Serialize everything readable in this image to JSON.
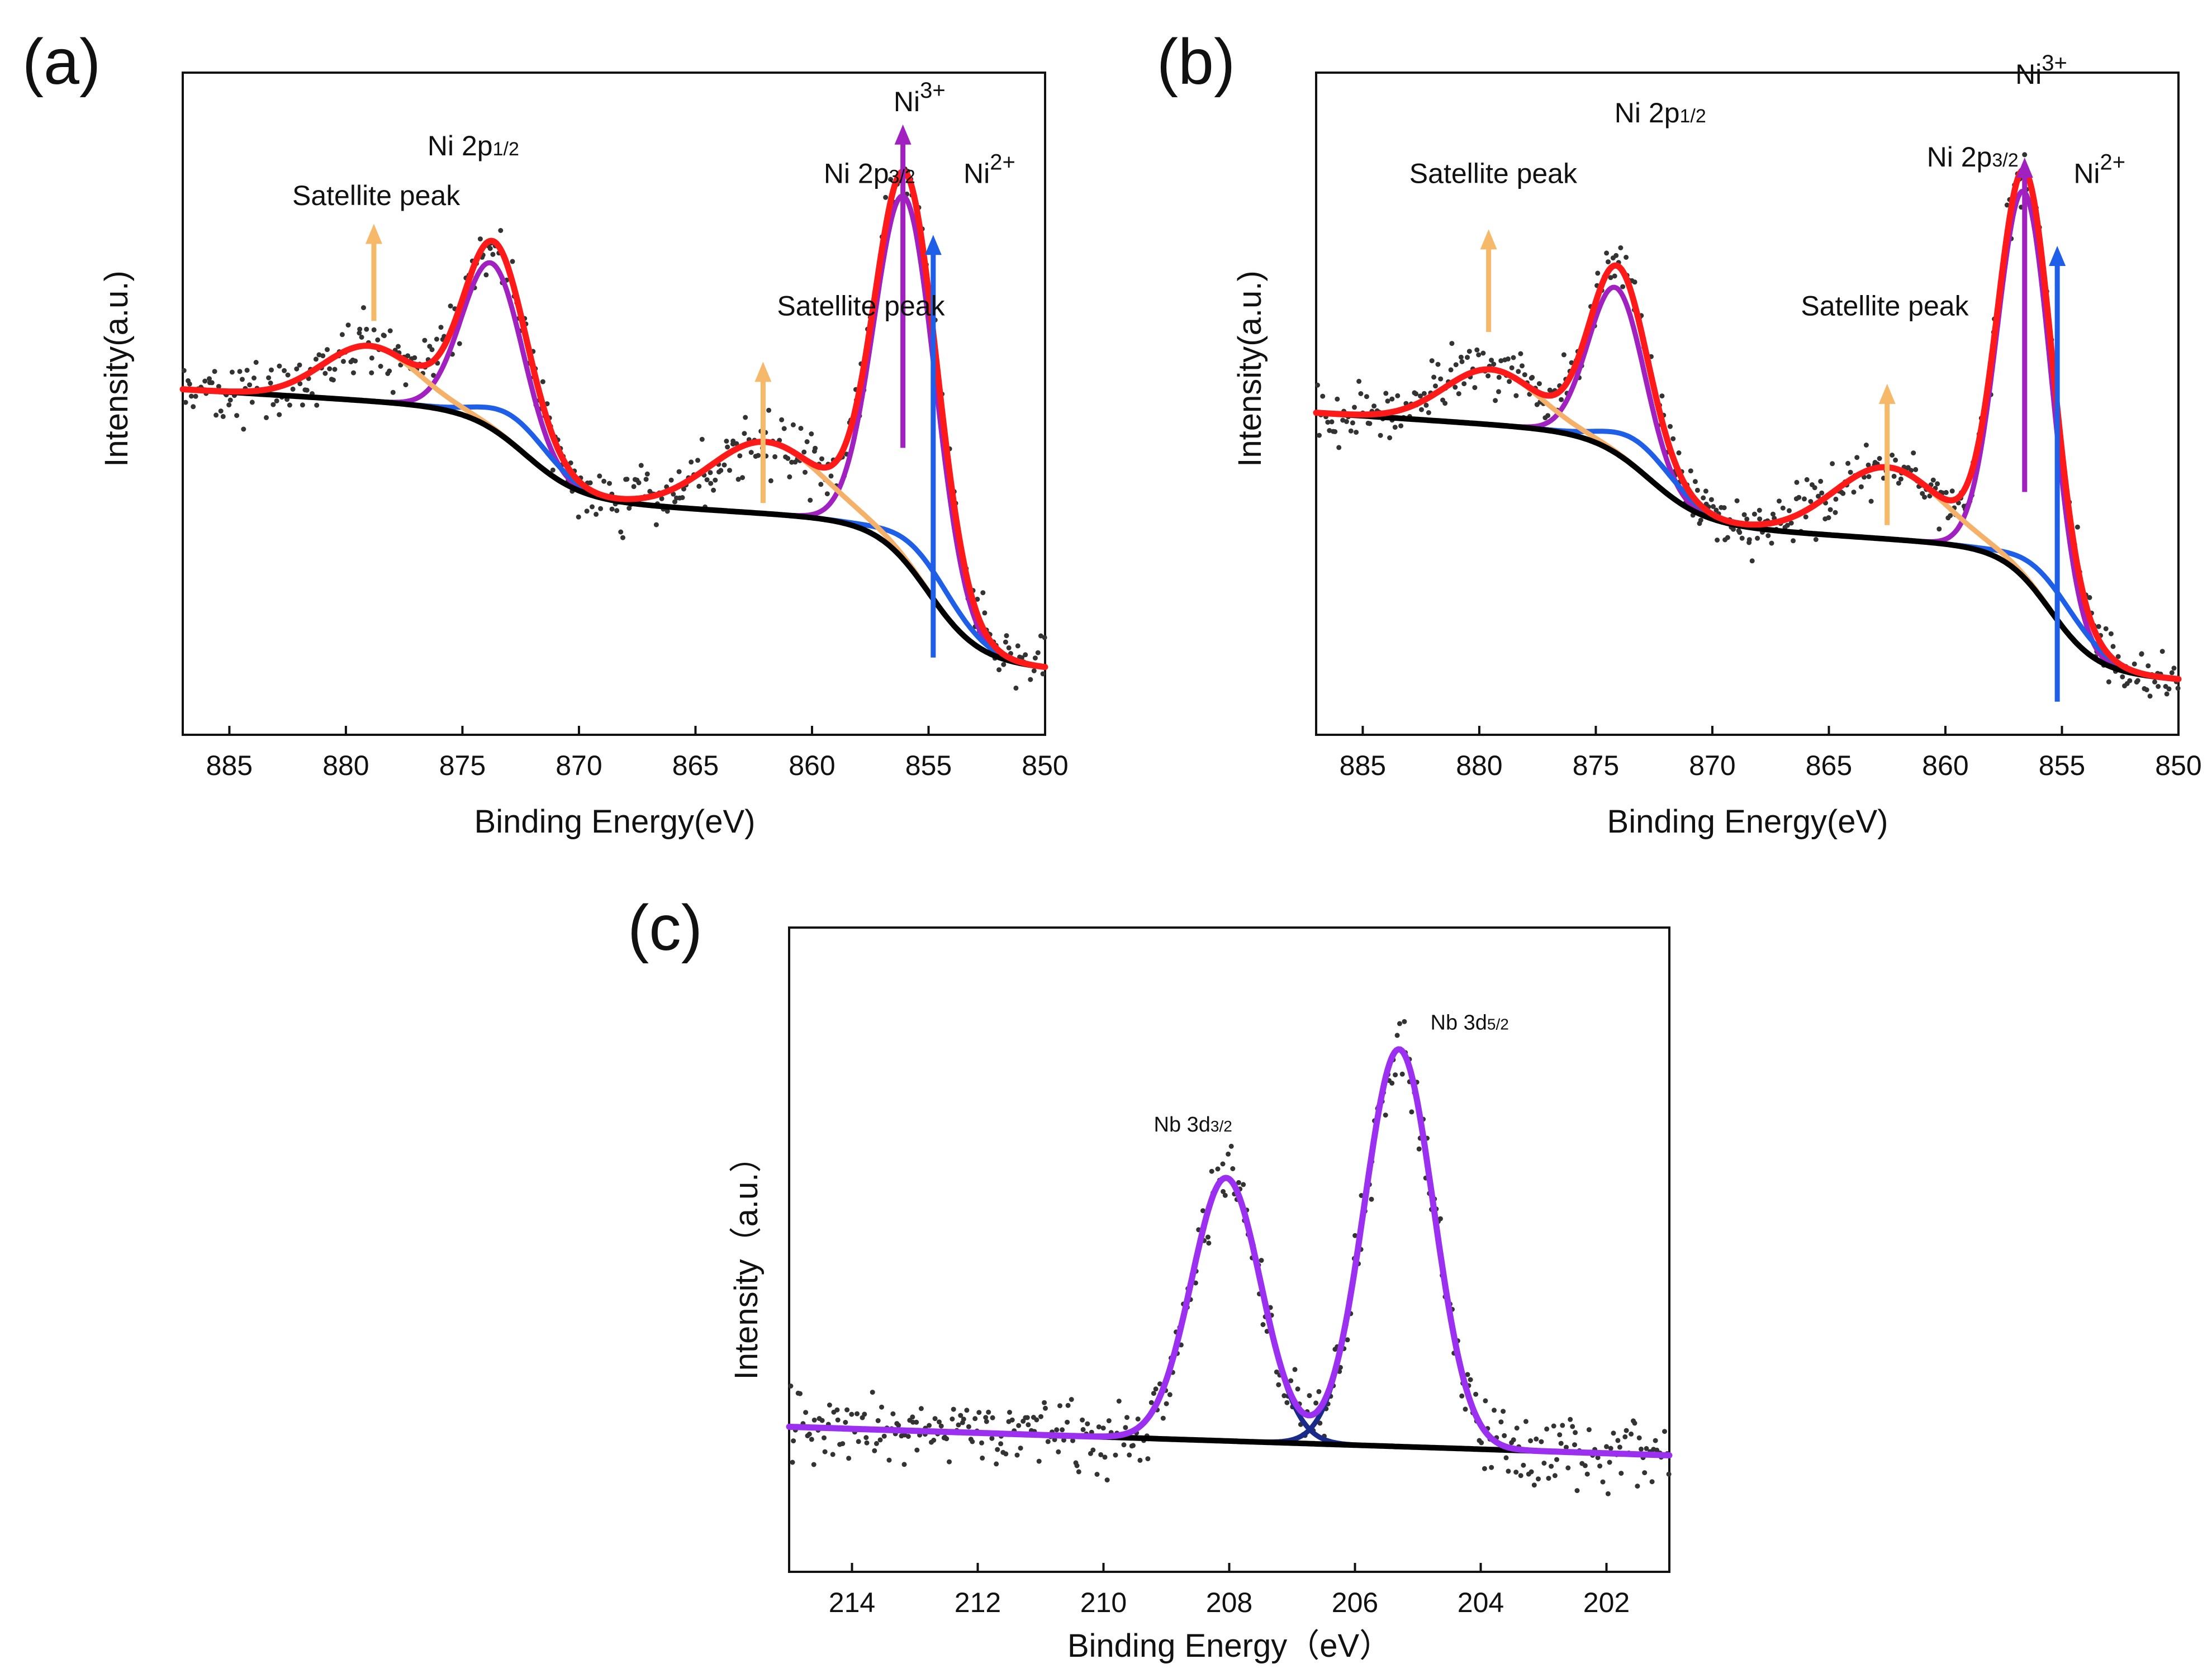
{
  "colors": {
    "raw": "#333333",
    "envelope_ni": "#ff1a1a",
    "ni3_component": "#a020c0",
    "ni2_component": "#1f5fe8",
    "satellite_component": "#f5b06a",
    "background": "#000000",
    "envelope_nb": "#9b30f0",
    "nb_component": "#1a2a8a",
    "satellite_arrow": "#f6b869",
    "ni3_arrow": "#a020c0",
    "ni2_arrow": "#1f5fe8"
  },
  "chart_data": [
    {
      "panel": "(a)",
      "type": "line",
      "xlabel": "Binding Energy(eV)",
      "ylabel": "Intensity(a.u.)",
      "xlim": [
        887,
        850
      ],
      "ylim": [
        0,
        1.2
      ],
      "xticks": [
        885,
        880,
        875,
        870,
        865,
        860,
        855,
        850
      ],
      "xtick_labels": [
        "885",
        "880",
        "875",
        "870",
        "865",
        "860",
        "855",
        "850"
      ],
      "peaks": [
        {
          "name": "Ni3+ 2p3/2",
          "center": 856.0,
          "height": 0.66,
          "width": 1.3,
          "series": "ni3"
        },
        {
          "name": "Ni2+ 2p3/2",
          "center": 855.0,
          "height": 0.05,
          "width": 1.5,
          "series": "ni2"
        },
        {
          "name": "Satellite 2p3/2",
          "center": 862.0,
          "height": 0.13,
          "width": 2.4,
          "series": "sat"
        },
        {
          "name": "Ni3+ 2p1/2",
          "center": 873.7,
          "height": 0.3,
          "width": 1.3,
          "series": "ni3"
        },
        {
          "name": "Ni2+ 2p1/2",
          "center": 872.6,
          "height": 0.05,
          "width": 1.5,
          "series": "ni2"
        },
        {
          "name": "Satellite 2p1/2",
          "center": 879.0,
          "height": 0.1,
          "width": 2.0,
          "series": "sat"
        }
      ],
      "background_steps": [
        {
          "center": 855.0,
          "height": 0.25,
          "width": 1.1
        },
        {
          "center": 872.3,
          "height": 0.16,
          "width": 1.2
        }
      ],
      "background_base": 0.12,
      "background_slope": 0.0026,
      "background_ref": 850,
      "noise": 0.035,
      "seed": 7,
      "annotations": [
        {
          "text": "Satellite peak",
          "x": 882.3,
          "y": 0.96
        },
        {
          "text": "Ni 2p",
          "sub": "1/2",
          "x": 876.5,
          "y": 1.05
        },
        {
          "text": "Satellite peak",
          "x": 861.5,
          "y": 0.76
        },
        {
          "text": "Ni 2p",
          "sub": "3/2",
          "x": 859.5,
          "y": 1.0
        },
        {
          "text": "Ni",
          "sup": "3+",
          "x": 856.5,
          "y": 1.13
        },
        {
          "text": "Ni",
          "sup": "2+",
          "x": 853.5,
          "y": 1.0
        }
      ],
      "arrows": [
        {
          "series": "sat",
          "x": 878.8,
          "from": 0.75,
          "to": 0.92
        },
        {
          "series": "sat",
          "x": 862.1,
          "from": 0.42,
          "to": 0.67
        },
        {
          "series": "ni3",
          "x": 856.1,
          "from": 0.52,
          "to": 1.1
        },
        {
          "series": "ni2",
          "x": 854.8,
          "from": 0.14,
          "to": 0.9
        }
      ]
    },
    {
      "panel": "(b)",
      "type": "line",
      "xlabel": "Binding Energy(eV)",
      "ylabel": "Intensity(a.u.)",
      "xlim": [
        887,
        850
      ],
      "ylim": [
        0,
        1.2
      ],
      "xticks": [
        885,
        880,
        875,
        870,
        865,
        860,
        855,
        850
      ],
      "xtick_labels": [
        "885",
        "880",
        "875",
        "870",
        "865",
        "860",
        "855",
        "850"
      ],
      "peaks": [
        {
          "name": "Ni3+ 2p3/2",
          "center": 856.6,
          "height": 0.7,
          "width": 1.15,
          "series": "ni3"
        },
        {
          "name": "Ni2+ 2p3/2",
          "center": 855.3,
          "height": 0.05,
          "width": 1.5,
          "series": "ni2"
        },
        {
          "name": "Satellite 2p3/2",
          "center": 862.5,
          "height": 0.13,
          "width": 2.3,
          "series": "sat"
        },
        {
          "name": "Ni3+ 2p1/2",
          "center": 874.1,
          "height": 0.3,
          "width": 1.2,
          "series": "ni3"
        },
        {
          "name": "Ni2+ 2p1/2",
          "center": 873.0,
          "height": 0.05,
          "width": 1.5,
          "series": "ni2"
        },
        {
          "name": "Satellite 2p1/2",
          "center": 879.5,
          "height": 0.1,
          "width": 2.0,
          "series": "sat"
        }
      ],
      "background_steps": [
        {
          "center": 855.5,
          "height": 0.22,
          "width": 1.0
        },
        {
          "center": 872.7,
          "height": 0.16,
          "width": 1.2
        }
      ],
      "background_base": 0.1,
      "background_slope": 0.0028,
      "background_ref": 850,
      "noise": 0.035,
      "seed": 19,
      "annotations": [
        {
          "text": "Satellite peak",
          "x": 883.0,
          "y": 1.0
        },
        {
          "text": "Ni 2p",
          "sub": "1/2",
          "x": 874.2,
          "y": 1.11
        },
        {
          "text": "Satellite peak",
          "x": 866.2,
          "y": 0.76
        },
        {
          "text": "Ni 2p",
          "sub": "3/2",
          "x": 860.8,
          "y": 1.03
        },
        {
          "text": "Ni",
          "sup": "3+",
          "x": 857.0,
          "y": 1.18
        },
        {
          "text": "Ni",
          "sup": "2+",
          "x": 854.5,
          "y": 1.0
        }
      ],
      "arrows": [
        {
          "series": "sat",
          "x": 879.6,
          "from": 0.73,
          "to": 0.91
        },
        {
          "series": "sat",
          "x": 862.5,
          "from": 0.38,
          "to": 0.63
        },
        {
          "series": "ni3",
          "x": 856.6,
          "from": 0.44,
          "to": 1.04
        },
        {
          "series": "ni2",
          "x": 855.2,
          "from": 0.06,
          "to": 0.88
        }
      ]
    },
    {
      "panel": "(c)",
      "type": "line",
      "xlabel": "Binding Energy（eV）",
      "ylabel": "Intensity（a.u.）",
      "xlim": [
        215,
        201
      ],
      "ylim": [
        0,
        1.2
      ],
      "xticks": [
        214,
        212,
        210,
        208,
        206,
        204,
        202
      ],
      "xtick_labels": [
        "214",
        "212",
        "210",
        "208",
        "206",
        "204",
        "202"
      ],
      "peaks": [
        {
          "name": "Nb 3d3/2",
          "center": 208.05,
          "height": 0.49,
          "width": 0.55,
          "series": "nb"
        },
        {
          "name": "Nb 3d5/2",
          "center": 205.3,
          "height": 0.74,
          "width": 0.55,
          "series": "nb"
        }
      ],
      "background_steps": [],
      "background_base": 0.217,
      "background_slope": 0.0038,
      "background_ref": 201,
      "noise": 0.04,
      "seed": 31,
      "annotations": [
        {
          "text": "Nb 3d",
          "sub": "3/2",
          "x": 209.2,
          "y": 0.82,
          "small": true
        },
        {
          "text": "Nb 3d",
          "sub": "5/2",
          "x": 204.8,
          "y": 1.01,
          "small": true
        }
      ],
      "arrows": []
    }
  ],
  "panels": {
    "a": {
      "label": "(a)",
      "xlabel": "Binding Energy(eV)",
      "ylabel": "Intensity(a.u.)"
    },
    "b": {
      "label": "(b)",
      "xlabel": "Binding Energy(eV)",
      "ylabel": "Intensity(a.u.)"
    },
    "c": {
      "label": "(c)",
      "xlabel": "Binding Energy（eV）",
      "ylabel": "Intensity（a.u.）"
    }
  }
}
